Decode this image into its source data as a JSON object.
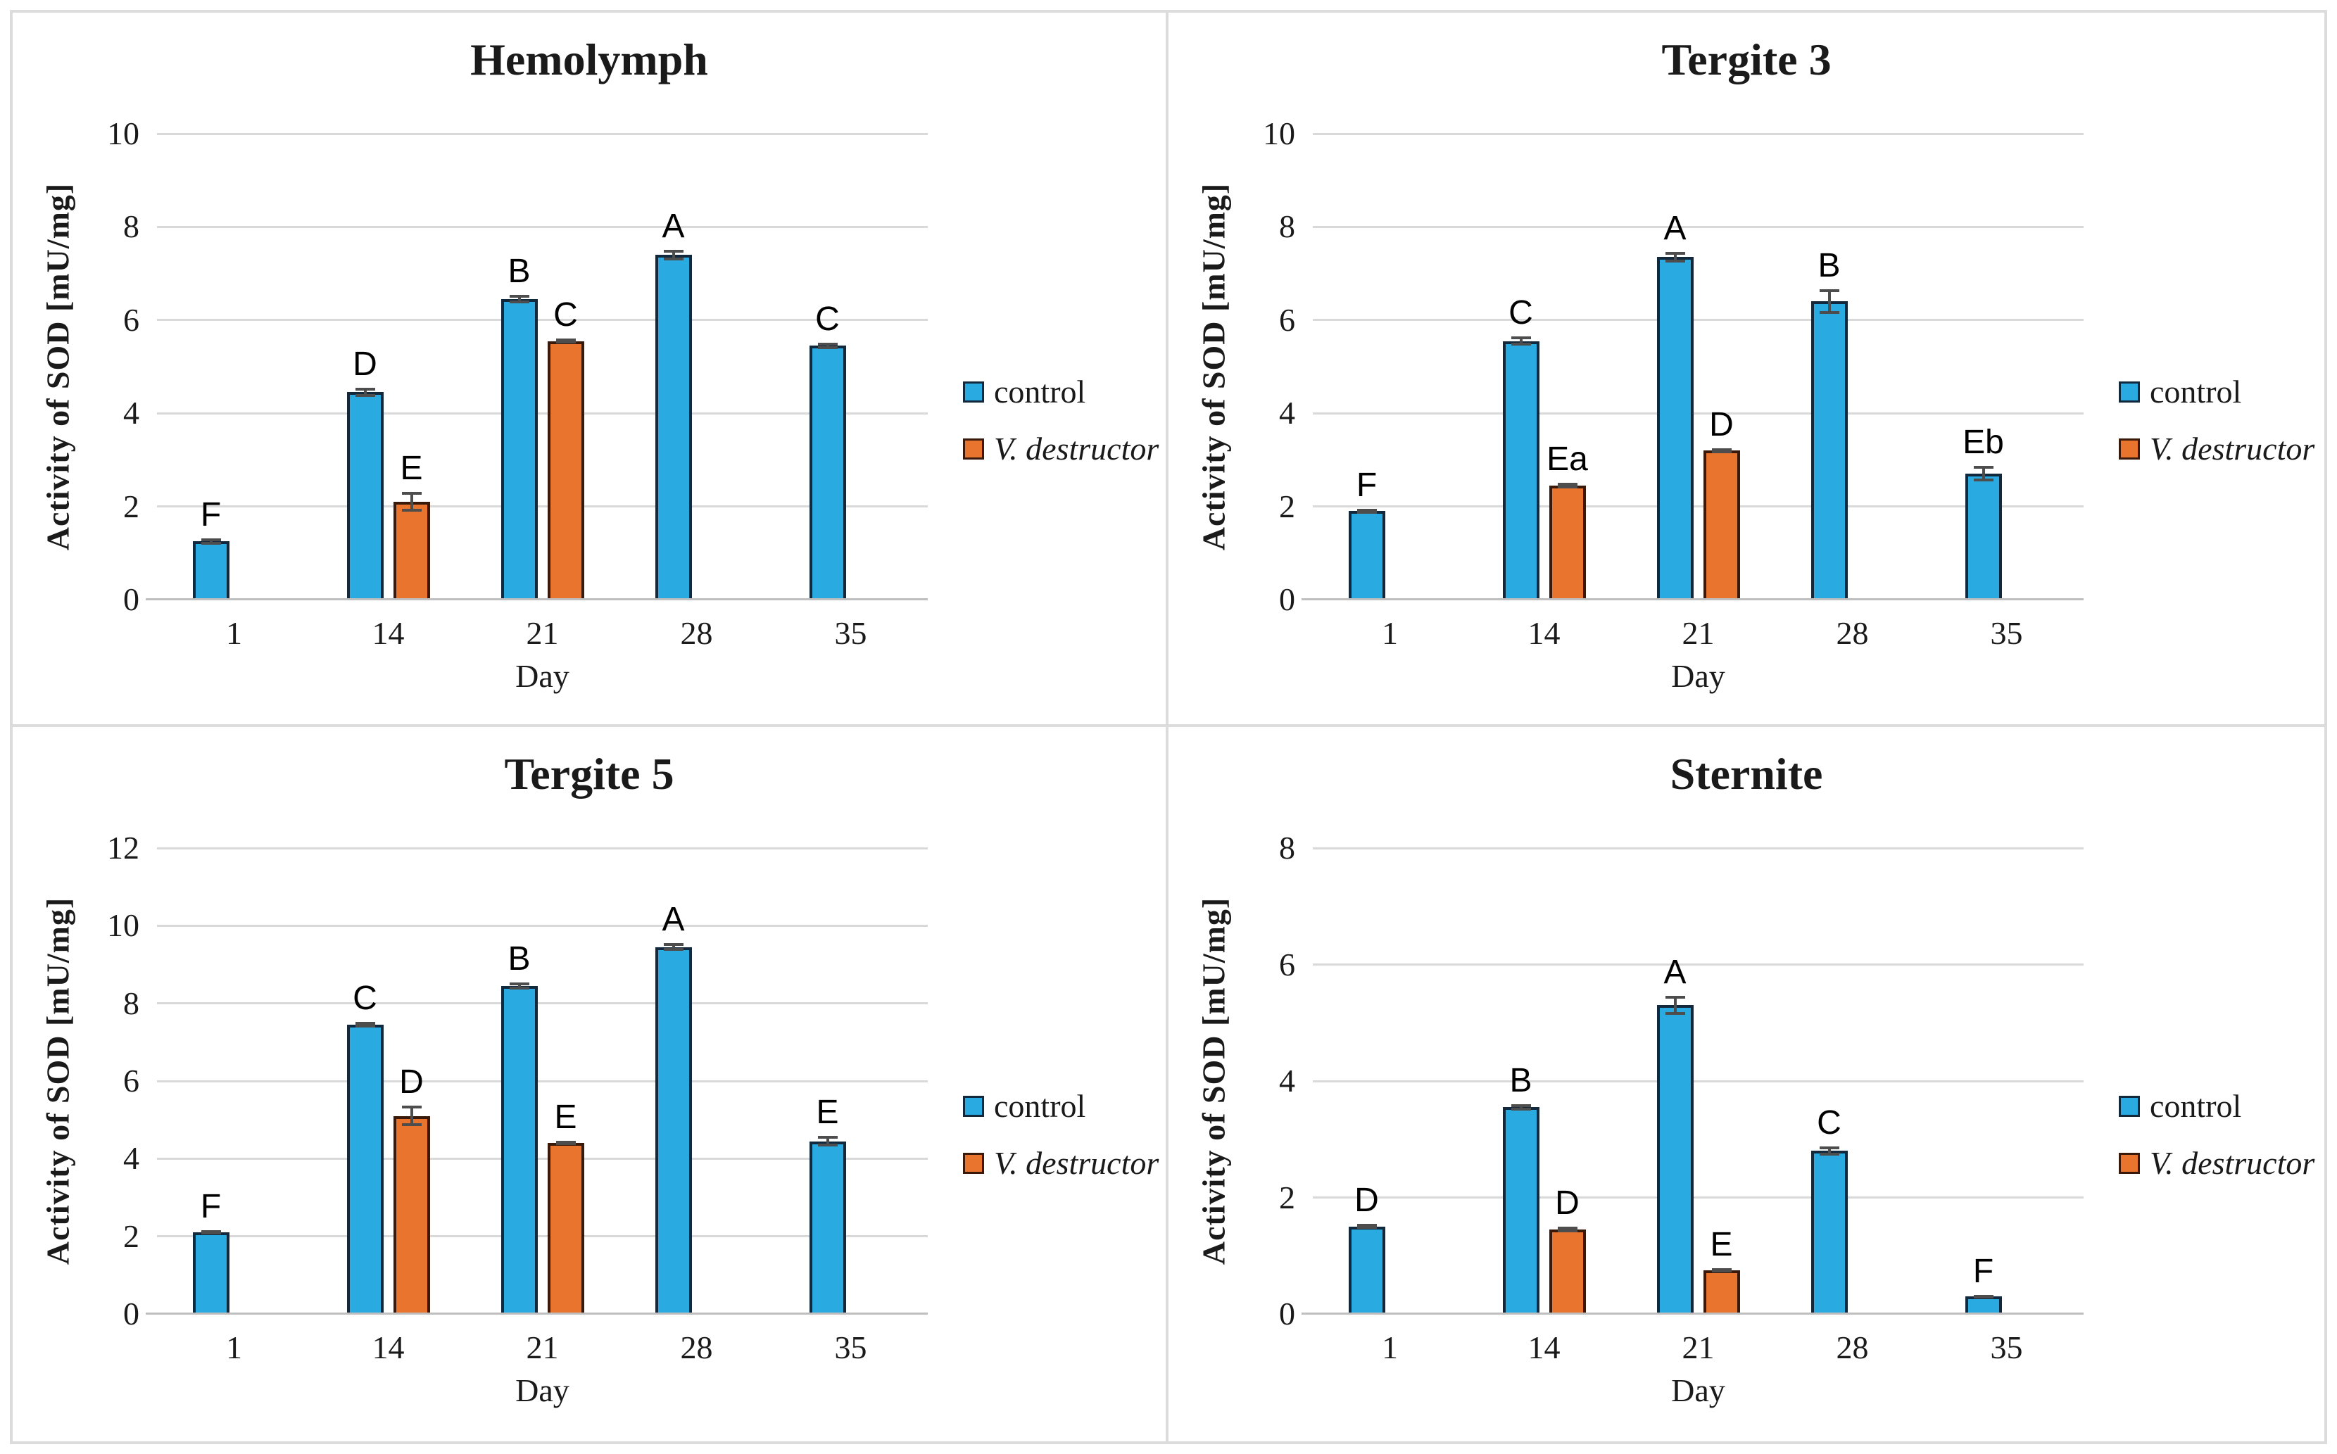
{
  "page": {
    "background": "#ffffff",
    "frame_color": "#dcdcdc",
    "gridline_color": "#d9d9d9",
    "axis_line_color": "#bfbfbf",
    "error_bar_color": "#4d4d4d"
  },
  "series_styles": {
    "control": {
      "fill": "#29abe2",
      "border": "#12283c"
    },
    "varroa": {
      "fill": "#e8742e",
      "border": "#38190a"
    }
  },
  "chart_data": [
    {
      "type": "bar",
      "title": "Hemolymph",
      "xlabel": "Day",
      "ylabel": "Activity of SOD [mU/mg]",
      "ylim": [
        0,
        10
      ],
      "yticks": [
        0,
        2,
        4,
        6,
        8,
        10
      ],
      "categories": [
        "1",
        "14",
        "21",
        "28",
        "35"
      ],
      "grid": true,
      "legend_position": "right",
      "series": [
        {
          "name": "control",
          "key": "control",
          "values": [
            1.25,
            4.45,
            6.45,
            7.4,
            5.45
          ],
          "errors": [
            0.05,
            0.08,
            0.08,
            0.1,
            0.05
          ],
          "labels": [
            "F",
            "D",
            "B",
            "A",
            "C"
          ]
        },
        {
          "name": "V. destructor",
          "key": "varroa",
          "values": [
            null,
            2.1,
            5.55,
            null,
            null
          ],
          "errors": [
            null,
            0.2,
            0.04,
            null,
            null
          ],
          "labels": [
            null,
            "E",
            "C",
            null,
            null
          ]
        }
      ]
    },
    {
      "type": "bar",
      "title": "Tergite 3",
      "xlabel": "Day",
      "ylabel": "Activity of SOD [mU/mg]",
      "ylim": [
        0,
        10
      ],
      "yticks": [
        0,
        2,
        4,
        6,
        8,
        10
      ],
      "categories": [
        "1",
        "14",
        "21",
        "28",
        "35"
      ],
      "grid": true,
      "legend_position": "right",
      "series": [
        {
          "name": "control",
          "key": "control",
          "values": [
            1.9,
            5.55,
            7.35,
            6.4,
            2.7
          ],
          "errors": [
            0.04,
            0.08,
            0.1,
            0.25,
            0.15
          ],
          "labels": [
            "F",
            "C",
            "A",
            "B",
            "Eb"
          ]
        },
        {
          "name": "V. destructor",
          "key": "varroa",
          "values": [
            null,
            2.45,
            3.2,
            null,
            null
          ],
          "errors": [
            null,
            0.05,
            0.04,
            null,
            null
          ],
          "labels": [
            null,
            "Ea",
            "D",
            null,
            null
          ]
        }
      ]
    },
    {
      "type": "bar",
      "title": "Tergite 5",
      "xlabel": "Day",
      "ylabel": "Activity of SOD [mU/mg]",
      "ylim": [
        0,
        12
      ],
      "yticks": [
        0,
        2,
        4,
        6,
        8,
        10,
        12
      ],
      "categories": [
        "1",
        "14",
        "21",
        "28",
        "35"
      ],
      "grid": true,
      "legend_position": "right",
      "series": [
        {
          "name": "control",
          "key": "control",
          "values": [
            2.1,
            7.45,
            8.45,
            9.45,
            4.45
          ],
          "errors": [
            0.04,
            0.06,
            0.07,
            0.08,
            0.12
          ],
          "labels": [
            "F",
            "C",
            "B",
            "A",
            "E"
          ]
        },
        {
          "name": "V. destructor",
          "key": "varroa",
          "values": [
            null,
            5.1,
            4.4,
            null,
            null
          ],
          "errors": [
            null,
            0.25,
            0.04,
            null,
            null
          ],
          "labels": [
            null,
            "D",
            "E",
            null,
            null
          ]
        }
      ]
    },
    {
      "type": "bar",
      "title": "Sternite",
      "xlabel": "Day",
      "ylabel": "Activity of SOD [mU/mg]",
      "ylim": [
        0,
        8
      ],
      "yticks": [
        0,
        2,
        4,
        6,
        8
      ],
      "categories": [
        "1",
        "14",
        "21",
        "28",
        "35"
      ],
      "grid": true,
      "legend_position": "right",
      "series": [
        {
          "name": "control",
          "key": "control",
          "values": [
            1.5,
            3.55,
            5.3,
            2.8,
            0.3
          ],
          "errors": [
            0.03,
            0.04,
            0.15,
            0.07,
            0.02
          ],
          "labels": [
            "D",
            "B",
            "A",
            "C",
            "F"
          ]
        },
        {
          "name": "V. destructor",
          "key": "varroa",
          "values": [
            null,
            1.45,
            0.75,
            null,
            null
          ],
          "errors": [
            null,
            0.04,
            0.02,
            null,
            null
          ],
          "labels": [
            null,
            "D",
            "E",
            null,
            null
          ]
        }
      ]
    }
  ]
}
